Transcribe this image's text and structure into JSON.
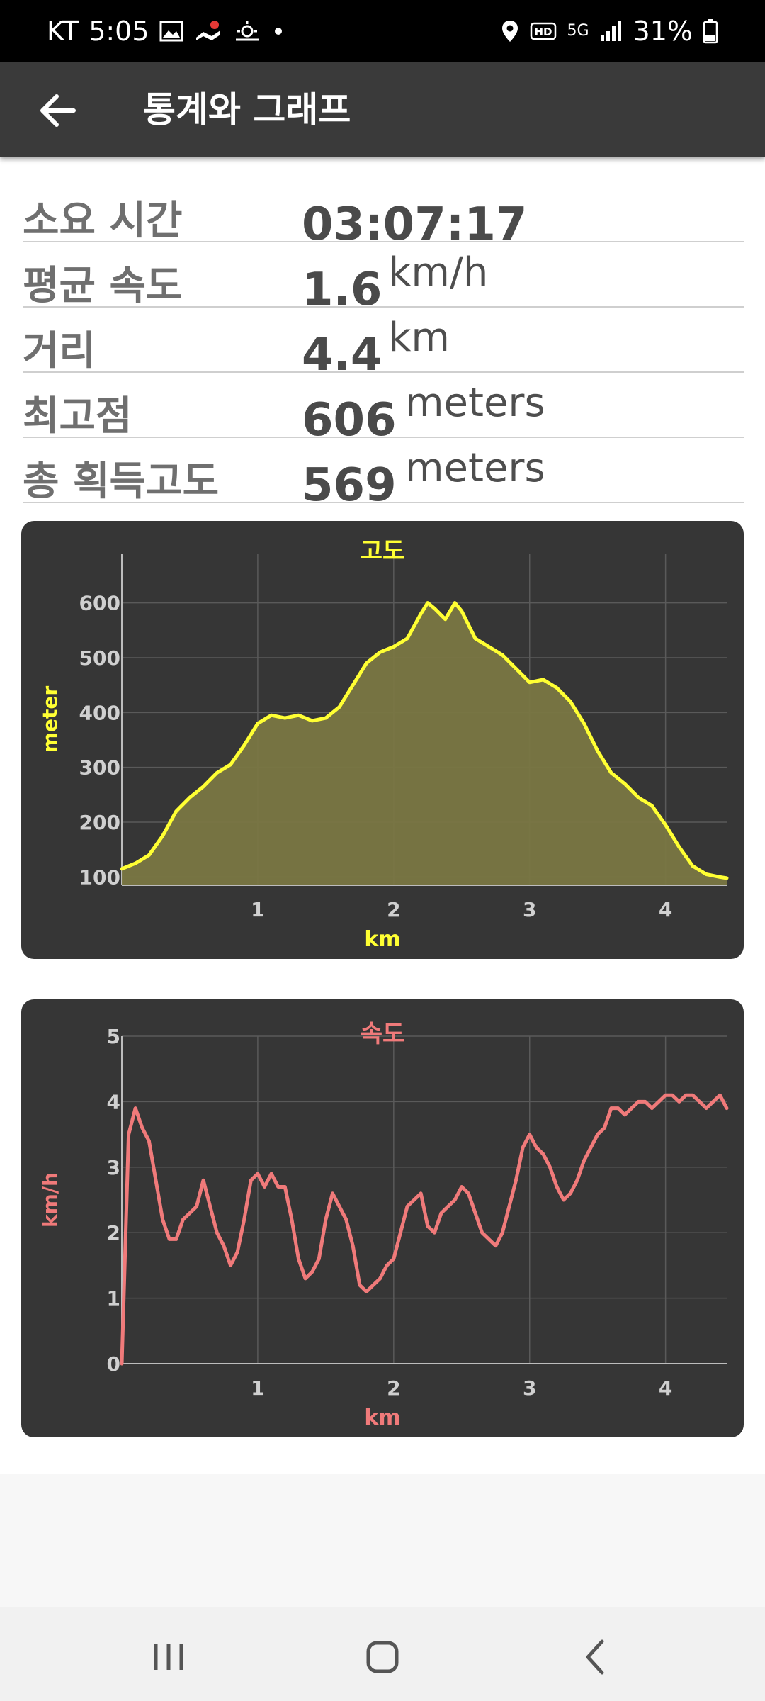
{
  "status_bar": {
    "carrier": "KT",
    "time": "5:05",
    "network": "5G",
    "battery": "31%",
    "icons": [
      "gallery-icon",
      "map-notification-icon",
      "weather-icon",
      "dot-icon",
      "location-icon",
      "hd-icon",
      "signal-icon",
      "battery-icon"
    ]
  },
  "app_bar": {
    "title": "통계와 그래프",
    "back_icon": "arrow-left-icon"
  },
  "stats": [
    {
      "label": "소요 시간",
      "value": "03:07:17",
      "unit": ""
    },
    {
      "label": "평균 속도",
      "value": "1.6",
      "unit": "km/h"
    },
    {
      "label": "거리",
      "value": "4.4",
      "unit": "km"
    },
    {
      "label": "최고점",
      "value": "606",
      "unit": "meters"
    },
    {
      "label": "총 획득고도",
      "value": "569",
      "unit": "meters"
    }
  ],
  "chart_data": [
    {
      "type": "area",
      "title": "고도",
      "xlabel": "km",
      "ylabel": "meter",
      "xlim": [
        0,
        4.45
      ],
      "ylim": [
        85,
        690
      ],
      "xticks": [
        1,
        2,
        3,
        4
      ],
      "yticks": [
        100,
        200,
        300,
        400,
        500,
        600
      ],
      "color": "#ffff33",
      "fill": "#7a7743",
      "grid": true,
      "x": [
        0,
        0.1,
        0.2,
        0.3,
        0.4,
        0.5,
        0.6,
        0.7,
        0.8,
        0.9,
        1.0,
        1.1,
        1.2,
        1.3,
        1.4,
        1.5,
        1.6,
        1.7,
        1.8,
        1.9,
        2.0,
        2.1,
        2.2,
        2.25,
        2.3,
        2.38,
        2.45,
        2.5,
        2.6,
        2.7,
        2.8,
        2.9,
        3.0,
        3.1,
        3.2,
        3.3,
        3.4,
        3.5,
        3.6,
        3.7,
        3.8,
        3.9,
        4.0,
        4.1,
        4.2,
        4.3,
        4.4,
        4.45
      ],
      "y": [
        115,
        125,
        140,
        175,
        220,
        245,
        265,
        290,
        305,
        340,
        380,
        395,
        390,
        395,
        385,
        390,
        410,
        450,
        490,
        510,
        520,
        535,
        580,
        600,
        590,
        570,
        600,
        585,
        535,
        520,
        505,
        480,
        455,
        460,
        445,
        420,
        380,
        330,
        290,
        270,
        245,
        230,
        195,
        155,
        120,
        105,
        100,
        98
      ]
    },
    {
      "type": "line",
      "title": "속도",
      "xlabel": "km",
      "ylabel": "km/h",
      "xlim": [
        0,
        4.45
      ],
      "ylim": [
        0,
        5
      ],
      "xticks": [
        1,
        2,
        3,
        4
      ],
      "yticks": [
        0,
        1,
        2,
        3,
        4,
        5
      ],
      "color": "#f07a7a",
      "grid": true,
      "x": [
        0,
        0.05,
        0.1,
        0.15,
        0.2,
        0.25,
        0.3,
        0.35,
        0.4,
        0.45,
        0.5,
        0.55,
        0.6,
        0.65,
        0.7,
        0.75,
        0.8,
        0.85,
        0.9,
        0.95,
        1.0,
        1.05,
        1.1,
        1.15,
        1.2,
        1.25,
        1.3,
        1.35,
        1.4,
        1.45,
        1.5,
        1.55,
        1.6,
        1.65,
        1.7,
        1.75,
        1.8,
        1.85,
        1.9,
        1.95,
        2.0,
        2.05,
        2.1,
        2.15,
        2.2,
        2.25,
        2.3,
        2.35,
        2.4,
        2.45,
        2.5,
        2.55,
        2.6,
        2.65,
        2.7,
        2.75,
        2.8,
        2.85,
        2.9,
        2.95,
        3.0,
        3.05,
        3.1,
        3.15,
        3.2,
        3.25,
        3.3,
        3.35,
        3.4,
        3.45,
        3.5,
        3.55,
        3.6,
        3.65,
        3.7,
        3.75,
        3.8,
        3.85,
        3.9,
        3.95,
        4.0,
        4.05,
        4.1,
        4.15,
        4.2,
        4.25,
        4.3,
        4.35,
        4.4,
        4.45
      ],
      "y": [
        0,
        3.5,
        3.9,
        3.6,
        3.4,
        2.8,
        2.2,
        1.9,
        1.9,
        2.2,
        2.3,
        2.4,
        2.8,
        2.4,
        2.0,
        1.8,
        1.5,
        1.7,
        2.2,
        2.8,
        2.9,
        2.7,
        2.9,
        2.7,
        2.7,
        2.2,
        1.6,
        1.3,
        1.4,
        1.6,
        2.2,
        2.6,
        2.4,
        2.2,
        1.8,
        1.2,
        1.1,
        1.2,
        1.3,
        1.5,
        1.6,
        2.0,
        2.4,
        2.5,
        2.6,
        2.1,
        2.0,
        2.3,
        2.4,
        2.5,
        2.7,
        2.6,
        2.3,
        2.0,
        1.9,
        1.8,
        2.0,
        2.4,
        2.8,
        3.3,
        3.5,
        3.3,
        3.2,
        3.0,
        2.7,
        2.5,
        2.6,
        2.8,
        3.1,
        3.3,
        3.5,
        3.6,
        3.9,
        3.9,
        3.8,
        3.9,
        4.0,
        4.0,
        3.9,
        4.0,
        4.1,
        4.1,
        4.0,
        4.1,
        4.1,
        4.0,
        3.9,
        4.0,
        4.1,
        3.9
      ]
    }
  ],
  "nav_bar": {
    "recents_icon": "recent-apps-icon",
    "home_icon": "home-icon",
    "back_icon": "system-back-icon"
  }
}
